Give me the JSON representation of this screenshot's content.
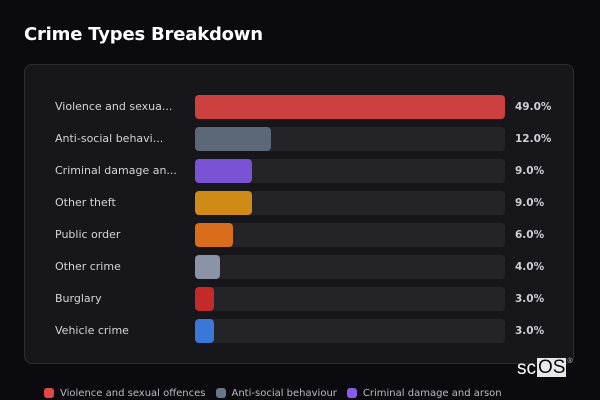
{
  "header": {
    "title": "Crime Types Breakdown"
  },
  "rows": [
    {
      "label": "Violence and sexua...",
      "value": 49.0,
      "pct": "49.0%",
      "color": "#cc4040"
    },
    {
      "label": "Anti-social behavi...",
      "value": 12.0,
      "pct": "12.0%",
      "color": "#5c6878"
    },
    {
      "label": "Criminal damage an...",
      "value": 9.0,
      "pct": "9.0%",
      "color": "#7a52d4"
    },
    {
      "label": "Other theft",
      "value": 9.0,
      "pct": "9.0%",
      "color": "#d08a16"
    },
    {
      "label": "Public order",
      "value": 6.0,
      "pct": "6.0%",
      "color": "#d86e1c"
    },
    {
      "label": "Other crime",
      "value": 4.0,
      "pct": "4.0%",
      "color": "#8a94a4"
    },
    {
      "label": "Burglary",
      "value": 3.0,
      "pct": "3.0%",
      "color": "#c42a2a"
    },
    {
      "label": "Vehicle crime",
      "value": 3.0,
      "pct": "3.0%",
      "color": "#3a78d8"
    }
  ],
  "legend": [
    {
      "label": "Violence and sexual offences",
      "color": "#e04848"
    },
    {
      "label": "Anti-social behaviour",
      "color": "#6a7588"
    },
    {
      "label": "Criminal damage and arson",
      "color": "#8a5ae8"
    }
  ],
  "logo": {
    "text_left": "sc",
    "text_boxed": "OS",
    "mark": "®"
  },
  "chart_data": {
    "type": "bar",
    "orientation": "horizontal",
    "title": "Crime Types Breakdown",
    "categories": [
      "Violence and sexual offences",
      "Anti-social behaviour",
      "Criminal damage and arson",
      "Other theft",
      "Public order",
      "Other crime",
      "Burglary",
      "Vehicle crime"
    ],
    "values": [
      49.0,
      12.0,
      9.0,
      9.0,
      6.0,
      4.0,
      3.0,
      3.0
    ],
    "value_labels": [
      "49.0%",
      "12.0%",
      "9.0%",
      "9.0%",
      "6.0%",
      "4.0%",
      "3.0%",
      "3.0%"
    ],
    "xlabel": "",
    "ylabel": "",
    "xlim": [
      0,
      49.0
    ],
    "grid": false,
    "legend_position": "bottom"
  }
}
